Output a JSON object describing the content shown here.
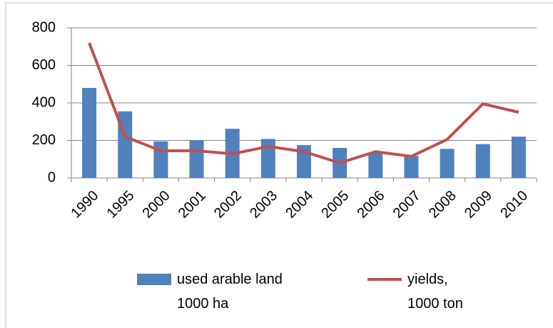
{
  "chart_data": {
    "type": "bar-line",
    "categories": [
      "1990",
      "1995",
      "2000",
      "2001",
      "2002",
      "2003",
      "2004",
      "2005",
      "2006",
      "2007",
      "2008",
      "2009",
      "2010"
    ],
    "series": [
      {
        "name": "used arable land 1000 ha",
        "type": "bar",
        "color": "#4f81bd",
        "values": [
          480,
          355,
          195,
          200,
          262,
          208,
          175,
          160,
          135,
          118,
          155,
          180,
          220
        ]
      },
      {
        "name": "yields, 1000 ton",
        "type": "line",
        "color": "#c0504d",
        "values": [
          720,
          220,
          145,
          145,
          128,
          168,
          140,
          80,
          140,
          115,
          205,
          395,
          350
        ]
      }
    ],
    "ylim": [
      0,
      800
    ],
    "yticks": [
      0,
      200,
      400,
      600,
      800
    ],
    "grid": true,
    "legend": "bottom"
  }
}
